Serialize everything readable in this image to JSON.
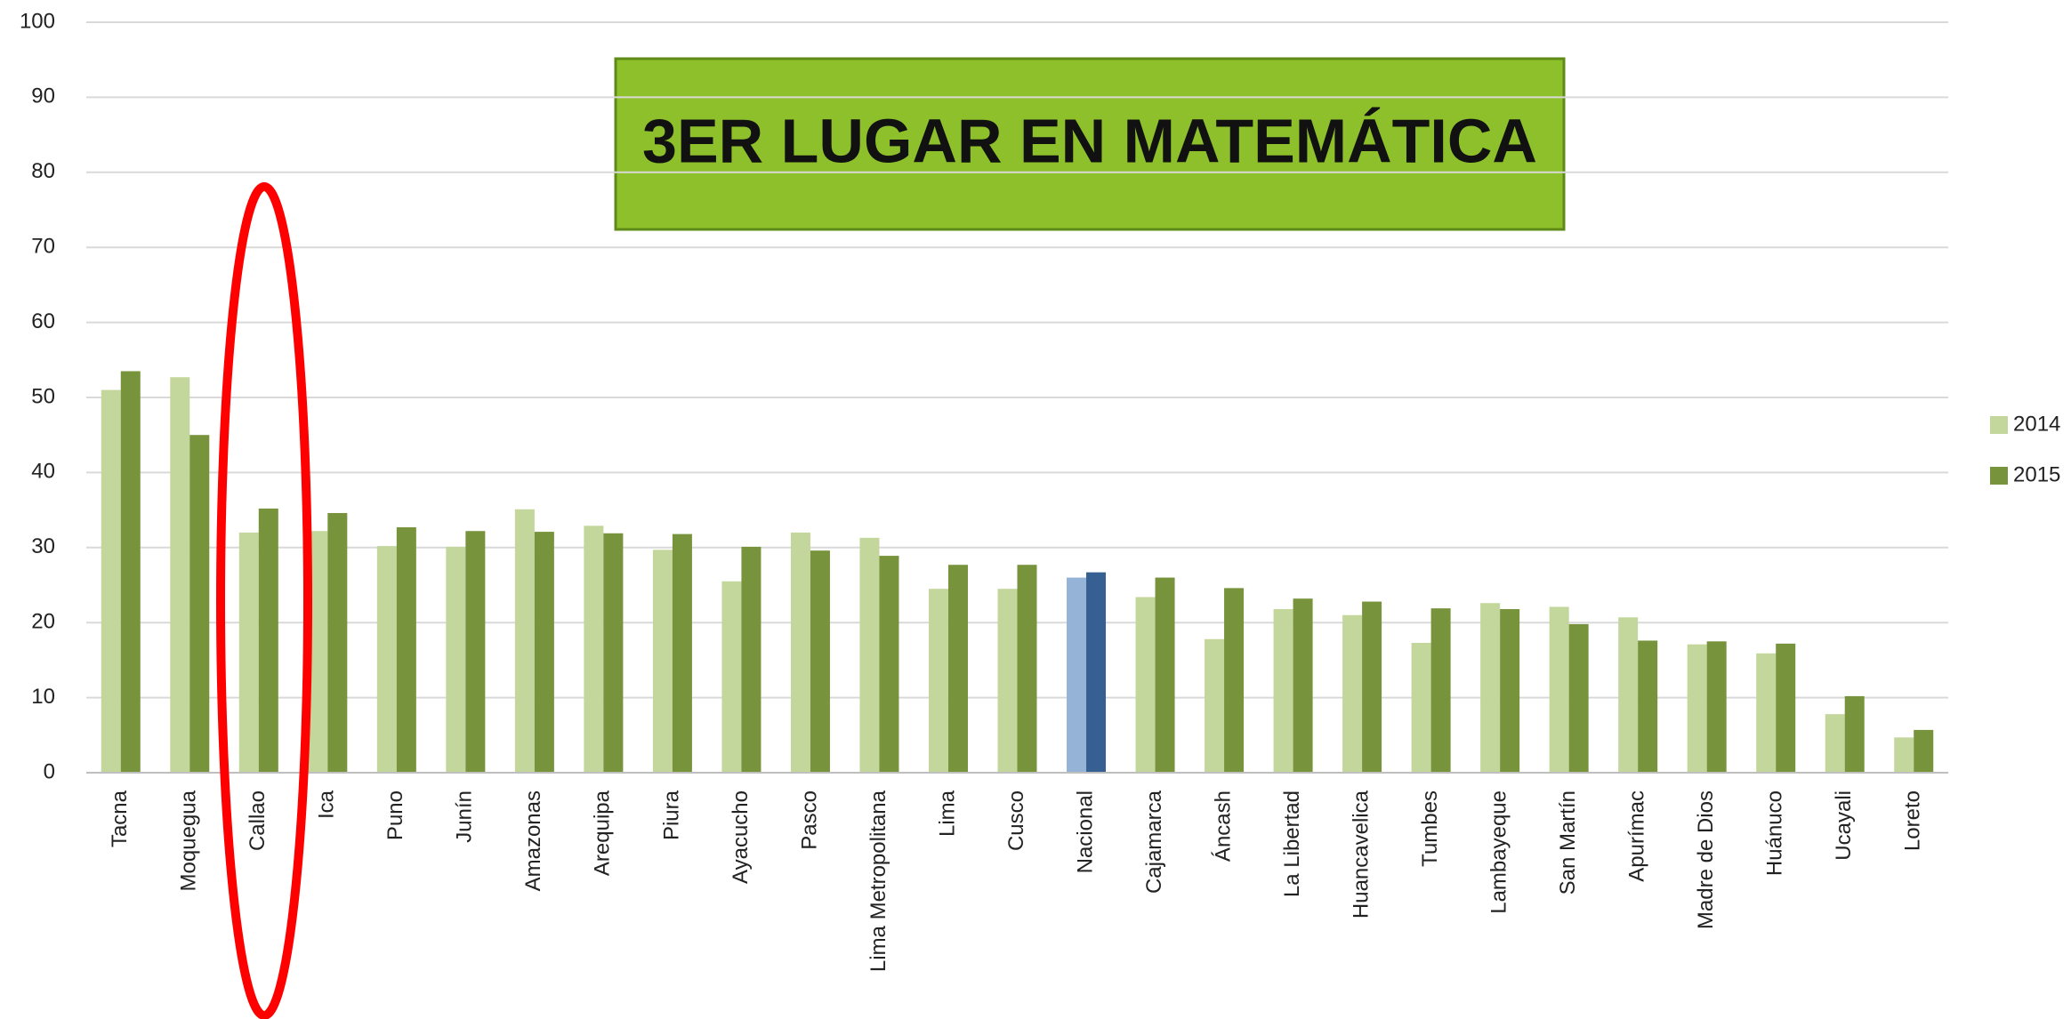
{
  "chart_data": {
    "type": "bar",
    "annotation": "3ER  LUGAR EN MATEMÁTICA",
    "categories": [
      "Tacna",
      "Moquegua",
      "Callao",
      "Ica",
      "Puno",
      "Junín",
      "Amazonas",
      "Arequipa",
      "Piura",
      "Ayacucho",
      "Pasco",
      "Lima Metropolitana",
      "Lima",
      "Cusco",
      "Nacional",
      "Cajamarca",
      "Áncash",
      "La Libertad",
      "Huancavelica",
      "Tumbes",
      "Lambayeque",
      "San Martín",
      "Apurímac",
      "Madre de Dios",
      "Huánuco",
      "Ucayali",
      "Loreto"
    ],
    "series": [
      {
        "name": "2014",
        "color": "#c3d69b",
        "values": [
          51,
          52.7,
          32,
          32.2,
          30.2,
          30.1,
          35.1,
          32.9,
          29.7,
          25.5,
          32,
          31.3,
          24.5,
          24.5,
          26,
          23.4,
          17.8,
          21.8,
          21,
          17.3,
          22.6,
          22.1,
          20.7,
          17.1,
          15.9,
          7.8,
          4.7
        ],
        "colors": [
          "#c3d69b",
          "#c3d69b",
          "#c3d69b",
          "#c3d69b",
          "#c3d69b",
          "#c3d69b",
          "#c3d69b",
          "#c3d69b",
          "#c3d69b",
          "#c3d69b",
          "#c3d69b",
          "#c3d69b",
          "#c3d69b",
          "#c3d69b",
          "#95b3d7",
          "#c3d69b",
          "#c3d69b",
          "#c3d69b",
          "#c3d69b",
          "#c3d69b",
          "#c3d69b",
          "#c3d69b",
          "#c3d69b",
          "#c3d69b",
          "#c3d69b",
          "#c3d69b",
          "#c3d69b"
        ]
      },
      {
        "name": "2015",
        "color": "#77933c",
        "values": [
          53.5,
          45,
          35.2,
          34.6,
          32.7,
          32.2,
          32.1,
          31.9,
          31.8,
          30.1,
          29.6,
          28.9,
          27.7,
          27.7,
          26.7,
          26,
          24.6,
          23.2,
          22.8,
          21.9,
          21.8,
          19.8,
          17.6,
          17.5,
          17.2,
          10.2,
          5.7
        ],
        "colors": [
          "#77933c",
          "#77933c",
          "#77933c",
          "#77933c",
          "#77933c",
          "#77933c",
          "#77933c",
          "#77933c",
          "#77933c",
          "#77933c",
          "#77933c",
          "#77933c",
          "#77933c",
          "#77933c",
          "#376092",
          "#77933c",
          "#77933c",
          "#77933c",
          "#77933c",
          "#77933c",
          "#77933c",
          "#77933c",
          "#77933c",
          "#77933c",
          "#77933c",
          "#77933c",
          "#77933c"
        ]
      }
    ],
    "ylim": [
      0,
      100
    ],
    "yticks": [
      0,
      10,
      20,
      30,
      40,
      50,
      60,
      70,
      80,
      90,
      100
    ],
    "grid": true,
    "legend": "right"
  }
}
